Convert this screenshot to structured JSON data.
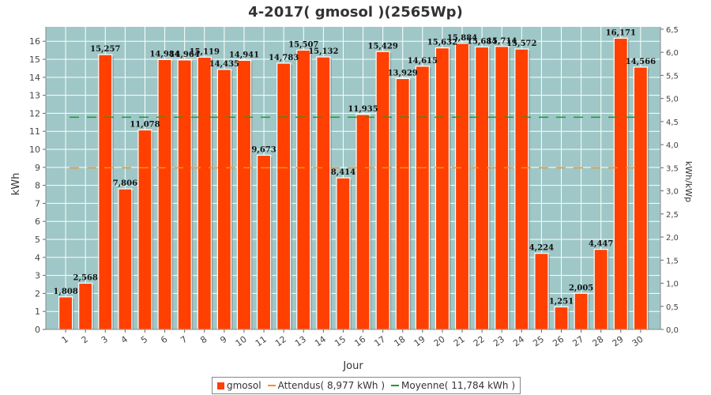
{
  "chart_data": {
    "type": "bar",
    "title": "4-2017( gmosol )(2565Wp)",
    "xlabel": "Jour",
    "ylabel": "kWh",
    "ylabel_right": "kWh/kWp",
    "ylim": [
      0,
      16.8
    ],
    "ylim_right": [
      0,
      6.55
    ],
    "yticks": [
      "0",
      "1",
      "2",
      "3",
      "4",
      "5",
      "6",
      "7",
      "8",
      "9",
      "10",
      "11",
      "12",
      "13",
      "14",
      "15",
      "16"
    ],
    "yticks_right": [
      "0,0",
      "0,5",
      "1,0",
      "1,5",
      "2,0",
      "2,5",
      "3,0",
      "3,5",
      "4,0",
      "4,5",
      "5,0",
      "5,5",
      "6,0",
      "6,5"
    ],
    "categories": [
      "1",
      "2",
      "3",
      "4",
      "5",
      "6",
      "7",
      "8",
      "9",
      "10",
      "11",
      "12",
      "13",
      "14",
      "15",
      "16",
      "17",
      "18",
      "19",
      "20",
      "21",
      "22",
      "23",
      "24",
      "25",
      "26",
      "27",
      "28",
      "29",
      "30"
    ],
    "series": [
      {
        "name": "gmosol",
        "values": [
          1.808,
          2.568,
          15.257,
          7.806,
          11.078,
          14.984,
          14.964,
          15.119,
          14.435,
          14.941,
          9.673,
          14.783,
          15.507,
          15.132,
          8.414,
          11.935,
          15.429,
          13.929,
          14.615,
          15.632,
          15.884,
          15.684,
          15.714,
          15.572,
          4.224,
          1.251,
          2.005,
          4.447,
          16.171,
          14.566
        ],
        "labels": [
          "1,808",
          "2,568",
          "15,257",
          "7,806",
          "11,078",
          "14,984",
          "14,964",
          "15,119",
          "14,435",
          "14,941",
          "9,673",
          "14,783",
          "15,507",
          "15,132",
          "8,414",
          "11,935",
          "15,429",
          "13,929",
          "14,615",
          "15,632",
          "15,884",
          "15,684",
          "15,714",
          "15,572",
          "4,224",
          "1,251",
          "2,005",
          "4,447",
          "16,171",
          "14,566"
        ]
      }
    ],
    "reference_lines": [
      {
        "name": "Attendus",
        "legend_label": "Attendus( 8,977 kWh )",
        "value": 8.977,
        "color": "#ff8c1a"
      },
      {
        "name": "Moyenne",
        "legend_label": "Moyenne( 11,784 kWh )",
        "value": 11.784,
        "color": "#1a9e2c"
      }
    ],
    "colors": {
      "plot_bg": "#9fc7c7",
      "bar": "#ff4000",
      "bar_shadow": "#7a7a7a",
      "grid": "#ffffff"
    },
    "grid": true,
    "legend_position": "bottom"
  }
}
